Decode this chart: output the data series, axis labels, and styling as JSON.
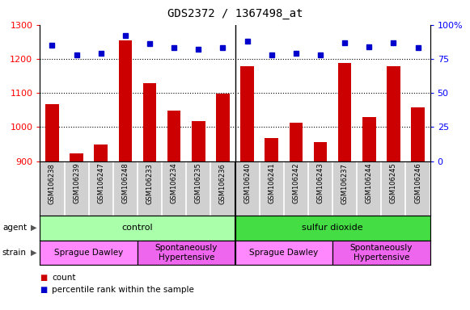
{
  "title": "GDS2372 / 1367498_at",
  "samples": [
    "GSM106238",
    "GSM106239",
    "GSM106247",
    "GSM106248",
    "GSM106233",
    "GSM106234",
    "GSM106235",
    "GSM106236",
    "GSM106240",
    "GSM106241",
    "GSM106242",
    "GSM106243",
    "GSM106237",
    "GSM106244",
    "GSM106245",
    "GSM106246"
  ],
  "counts": [
    1068,
    922,
    950,
    1255,
    1130,
    1048,
    1018,
    1098,
    1178,
    968,
    1012,
    955,
    1188,
    1030,
    1178,
    1058
  ],
  "percentiles": [
    85,
    78,
    79,
    92,
    86,
    83,
    82,
    83,
    88,
    78,
    79,
    78,
    87,
    84,
    87,
    83
  ],
  "ylim_left": [
    900,
    1300
  ],
  "ylim_right": [
    0,
    100
  ],
  "yticks_left": [
    900,
    1000,
    1100,
    1200,
    1300
  ],
  "yticks_right": [
    0,
    25,
    50,
    75,
    100
  ],
  "bar_color": "#cc0000",
  "dot_color": "#0000cc",
  "bg_color": "#ffffff",
  "sample_bg": "#d0d0d0",
  "agent_groups": [
    {
      "label": "control",
      "start": 0,
      "end": 8,
      "color": "#aaffaa"
    },
    {
      "label": "sulfur dioxide",
      "start": 8,
      "end": 16,
      "color": "#44dd44"
    }
  ],
  "strain_groups": [
    {
      "label": "Sprague Dawley",
      "start": 0,
      "end": 4,
      "color": "#ff88ff"
    },
    {
      "label": "Spontaneously\nHypertensive",
      "start": 4,
      "end": 8,
      "color": "#ee66ee"
    },
    {
      "label": "Sprague Dawley",
      "start": 8,
      "end": 12,
      "color": "#ff88ff"
    },
    {
      "label": "Spontaneously\nHypertensive",
      "start": 12,
      "end": 16,
      "color": "#ee66ee"
    }
  ]
}
